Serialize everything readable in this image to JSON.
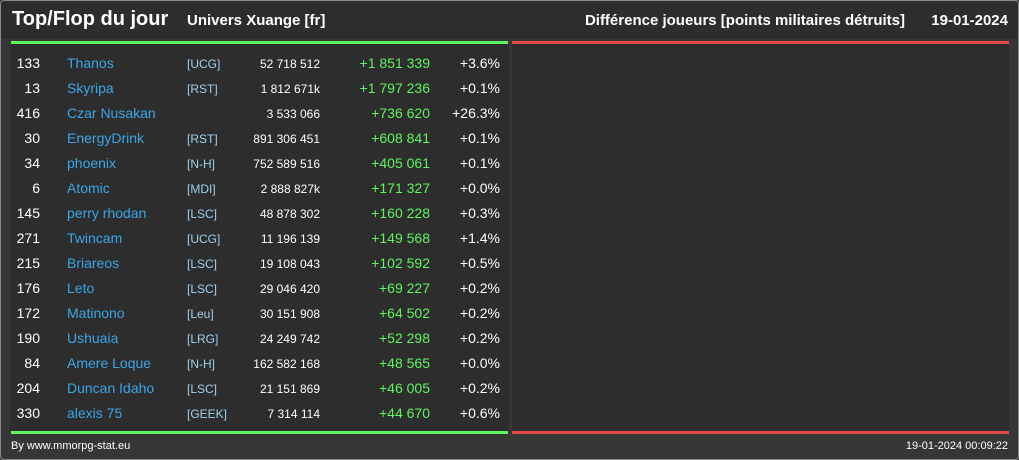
{
  "header": {
    "title": "Top/Flop du jour",
    "universe": "Univers Xuange [fr]",
    "metric": "Différence joueurs [points militaires détruits]",
    "date": "19-01-2024"
  },
  "colors": {
    "positive": "#5ef55e",
    "negative": "#e24b44",
    "player_link": "#3aa6e8",
    "alliance_tag": "#9fd0f0"
  },
  "top_rows": [
    {
      "rank": "133",
      "name": "Thanos",
      "tag": "[UCG]",
      "total": "52 718 512",
      "diff": "+1 851 339",
      "pct": "+3.6%"
    },
    {
      "rank": "13",
      "name": "Skyripa",
      "tag": "[RST]",
      "total": "1 812 671k",
      "diff": "+1 797 236",
      "pct": "+0.1%"
    },
    {
      "rank": "416",
      "name": "Czar Nusakan",
      "tag": "",
      "total": "3 533 066",
      "diff": "+736 620",
      "pct": "+26.3%"
    },
    {
      "rank": "30",
      "name": "EnergyDrink",
      "tag": "[RST]",
      "total": "891 306 451",
      "diff": "+608 841",
      "pct": "+0.1%"
    },
    {
      "rank": "34",
      "name": "phoenix",
      "tag": "[N-H]",
      "total": "752 589 516",
      "diff": "+405 061",
      "pct": "+0.1%"
    },
    {
      "rank": "6",
      "name": "Atomic",
      "tag": "[MDI]",
      "total": "2 888 827k",
      "diff": "+171 327",
      "pct": "+0.0%"
    },
    {
      "rank": "145",
      "name": "perry rhodan",
      "tag": "[LSC]",
      "total": "48 878 302",
      "diff": "+160 228",
      "pct": "+0.3%"
    },
    {
      "rank": "271",
      "name": "Twincam",
      "tag": "[UCG]",
      "total": "11 196 139",
      "diff": "+149 568",
      "pct": "+1.4%"
    },
    {
      "rank": "215",
      "name": "Briareos",
      "tag": "[LSC]",
      "total": "19 108 043",
      "diff": "+102 592",
      "pct": "+0.5%"
    },
    {
      "rank": "176",
      "name": "Leto",
      "tag": "[LSC]",
      "total": "29 046 420",
      "diff": "+69 227",
      "pct": "+0.2%"
    },
    {
      "rank": "172",
      "name": "Matinono",
      "tag": "[Leu]",
      "total": "30 151 908",
      "diff": "+64 502",
      "pct": "+0.2%"
    },
    {
      "rank": "190",
      "name": "Ushuaia",
      "tag": "[LRG]",
      "total": "24 249 742",
      "diff": "+52 298",
      "pct": "+0.2%"
    },
    {
      "rank": "84",
      "name": "Amere Loque",
      "tag": "[N-H]",
      "total": "162 582 168",
      "diff": "+48 565",
      "pct": "+0.0%"
    },
    {
      "rank": "204",
      "name": "Duncan Idaho",
      "tag": "[LSC]",
      "total": "21 151 869",
      "diff": "+46 005",
      "pct": "+0.2%"
    },
    {
      "rank": "330",
      "name": "alexis 75",
      "tag": "[GEEK]",
      "total": "7 314 114",
      "diff": "+44 670",
      "pct": "+0.6%"
    }
  ],
  "flop_rows": [],
  "footer": {
    "credit": "By www.mmorpg-stat.eu",
    "timestamp": "19-01-2024 00:09:22"
  }
}
